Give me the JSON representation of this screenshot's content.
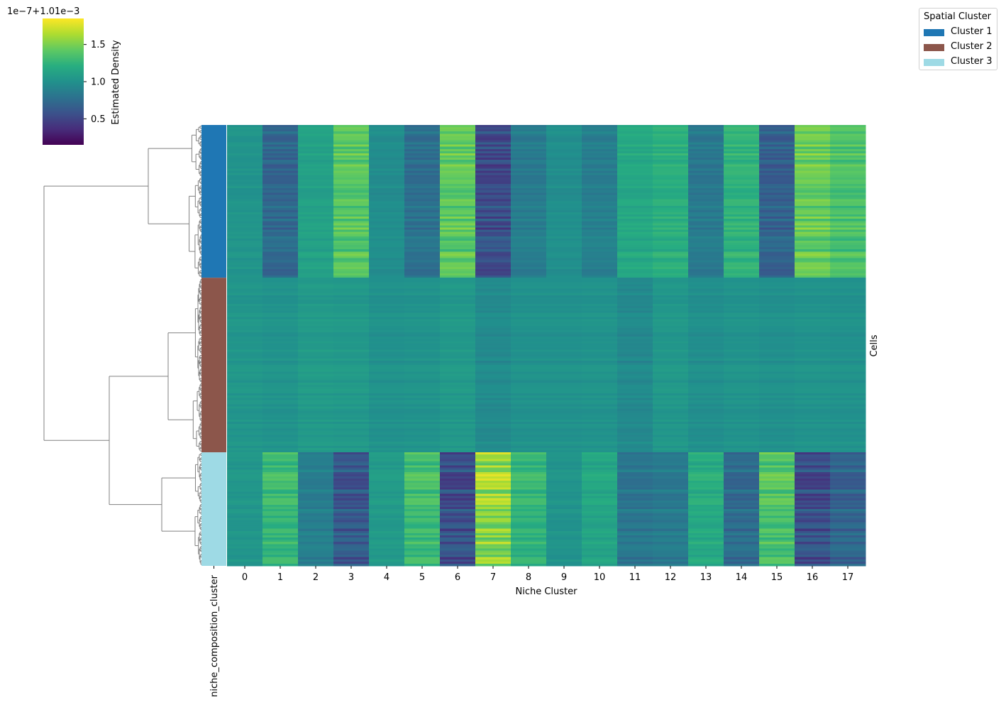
{
  "chart_data": {
    "type": "heatmap",
    "xlabel": "Niche Cluster",
    "ylabel": "Cells",
    "row_color_label": "niche_composition_cluster",
    "x_categories": [
      "0",
      "1",
      "2",
      "3",
      "4",
      "5",
      "6",
      "7",
      "8",
      "9",
      "10",
      "11",
      "12",
      "13",
      "14",
      "15",
      "16",
      "17"
    ],
    "colorbar": {
      "label": "Estimated Density",
      "offset_text": "1e−7+1.01e−3",
      "ticks": [
        "0.5",
        "1.0",
        "1.5"
      ],
      "tick_values": [
        0.5,
        1.0,
        1.5
      ],
      "range": [
        0.15,
        1.85
      ],
      "colormap": "viridis"
    },
    "legend": {
      "title": "Spatial Cluster",
      "placement": "top-right",
      "entries": [
        {
          "name": "Cluster 1",
          "color": "#1f77b4"
        },
        {
          "name": "Cluster 2",
          "color": "#8c564b"
        },
        {
          "name": "Cluster 3",
          "color": "#9edae5"
        }
      ]
    },
    "row_groups": [
      {
        "name": "Cluster 1",
        "rows": 70,
        "mean_values": [
          1.03,
          0.72,
          1.12,
          1.4,
          0.98,
          0.78,
          1.42,
          0.55,
          0.86,
          0.99,
          0.88,
          1.17,
          1.22,
          0.84,
          1.25,
          0.68,
          1.45,
          1.36
        ]
      },
      {
        "name": "Cluster 2",
        "rows": 80,
        "mean_values": [
          1.04,
          1.02,
          1.07,
          1.06,
          1.01,
          1.02,
          1.06,
          0.96,
          1.01,
          1.01,
          1.02,
          0.95,
          1.05,
          0.99,
          1.02,
          1.0,
          1.02,
          1.01
        ]
      },
      {
        "name": "Cluster 3",
        "rows": 52,
        "mean_values": [
          1.05,
          1.3,
          0.88,
          0.62,
          1.08,
          1.33,
          0.56,
          1.58,
          1.27,
          1.03,
          1.16,
          0.82,
          0.85,
          1.2,
          0.75,
          1.38,
          0.56,
          0.7
        ]
      }
    ]
  }
}
